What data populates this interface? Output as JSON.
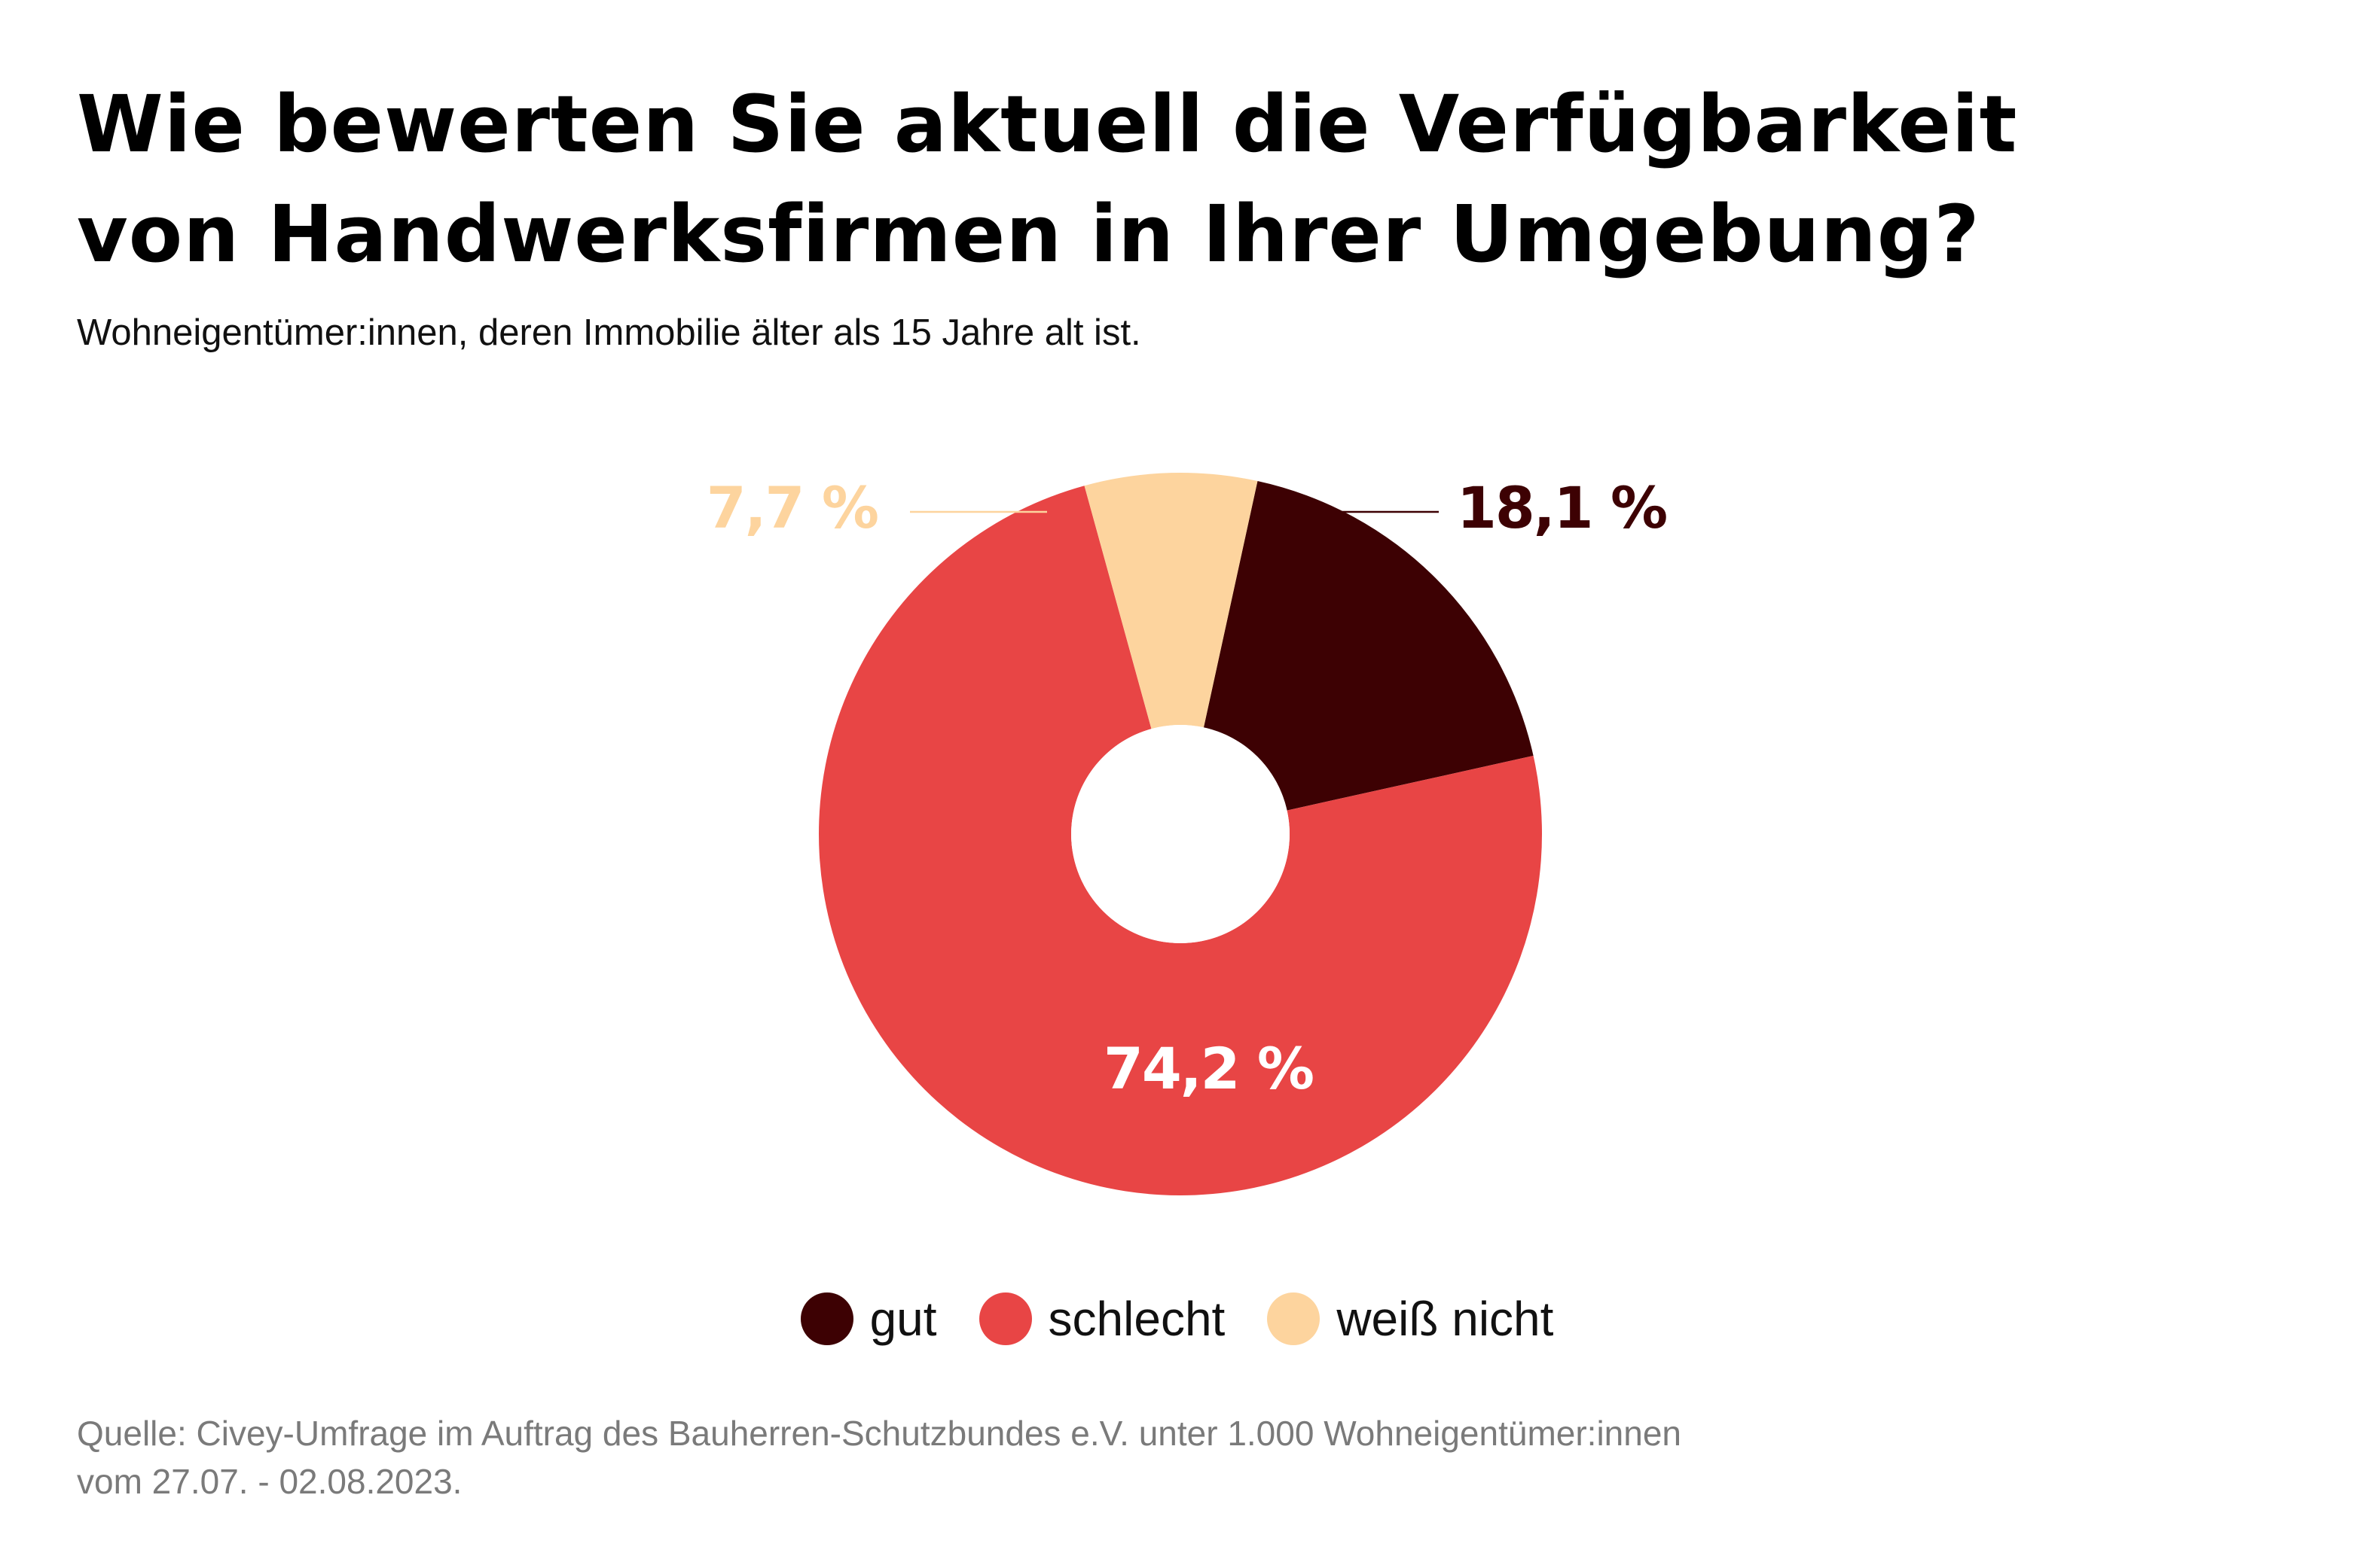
{
  "title_lines": [
    "Wie bewerten Sie aktuell die Verfügbarkeit",
    "von Handwerksfirmen in Ihrer Umgebung?"
  ],
  "subtitle": "Wohneigentümer:innen, deren Immobilie älter als 15 Jahre alt ist.",
  "chart_data": {
    "type": "pie",
    "donut": true,
    "slices": [
      {
        "name": "gut",
        "value": 18.1,
        "label": "18,1 %",
        "color": "#3d0103"
      },
      {
        "name": "schlecht",
        "value": 74.2,
        "label": "74,2 %",
        "color": "#e84545"
      },
      {
        "name": "weiß nicht",
        "value": 7.7,
        "label": "7,7 %",
        "color": "#fdd49e"
      }
    ],
    "legend_position": "bottom"
  },
  "colors": {
    "schlecht_label": "#ffffff",
    "leader_gut": "#3d0103",
    "leader_weiss_nicht": "#fdd49e"
  },
  "source_lines": [
    "Quelle: Civey-Umfrage im Auftrag des Bauherren-Schutzbundes e.V. unter 1.000 Wohneigentümer:innen",
    "vom 27.07. - 02.08.2023."
  ]
}
